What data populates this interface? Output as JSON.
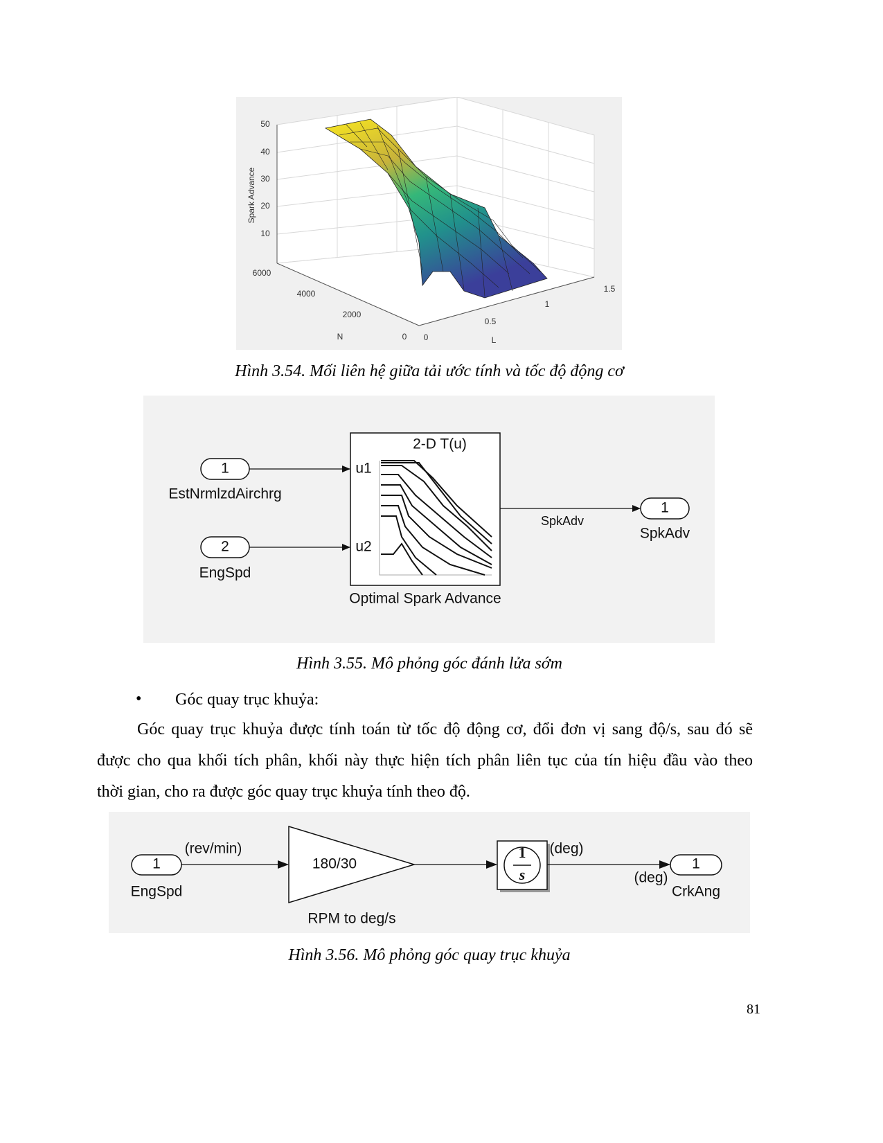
{
  "figure_1": {
    "plot": {
      "z_label": "Spark Advance",
      "z_ticks": [
        "50",
        "40",
        "30",
        "20",
        "10"
      ],
      "n_label": "N",
      "n_ticks": [
        "6000",
        "4000",
        "2000",
        "0"
      ],
      "l_label": "L",
      "l_ticks": [
        "0",
        "0.5",
        "1",
        "1.5"
      ]
    },
    "caption": "Hình 3.54. Mối liên hệ giữa tải ước tính và tốc độ động cơ"
  },
  "figure_2": {
    "inport_1": {
      "number": "1",
      "name": "EstNrmlzdAirchrg"
    },
    "inport_2": {
      "number": "2",
      "name": "EngSpd"
    },
    "lookup": {
      "title": "2-D T(u)",
      "input_1": "u1",
      "input_2": "u2",
      "name": "Optimal Spark Advance"
    },
    "signal_label": "SpkAdv",
    "outport": {
      "number": "1",
      "name": "SpkAdv"
    },
    "caption": "Hình 3.55. Mô phỏng góc đánh lửa sớm"
  },
  "bullet": "Góc quay trục khuỷa:",
  "paragraph": [
    "Góc quay trục khuỷa được tính toán từ tốc độ động cơ, đổi đơn vị sang độ/s, sau đó sẽ",
    "được cho qua khối tích phân, khối này thực hiện tích phân liên tục của tín hiệu đầu vào theo",
    "thời gian, cho ra được góc quay trục khuỷa tính theo độ."
  ],
  "figure_3": {
    "inport": {
      "number": "1",
      "name": "EngSpd",
      "signal": "(rev/min)"
    },
    "gain": {
      "value": "180/30",
      "name": "RPM to deg/s"
    },
    "integrator": {
      "numerator": "1",
      "denominator": "s",
      "signal": "(deg)"
    },
    "outport": {
      "number": "1",
      "name": "CrkAng",
      "signal": "(deg)"
    },
    "caption": "Hình 3.56. Mô phỏng góc quay trục khuỷa"
  },
  "page_number": "81"
}
